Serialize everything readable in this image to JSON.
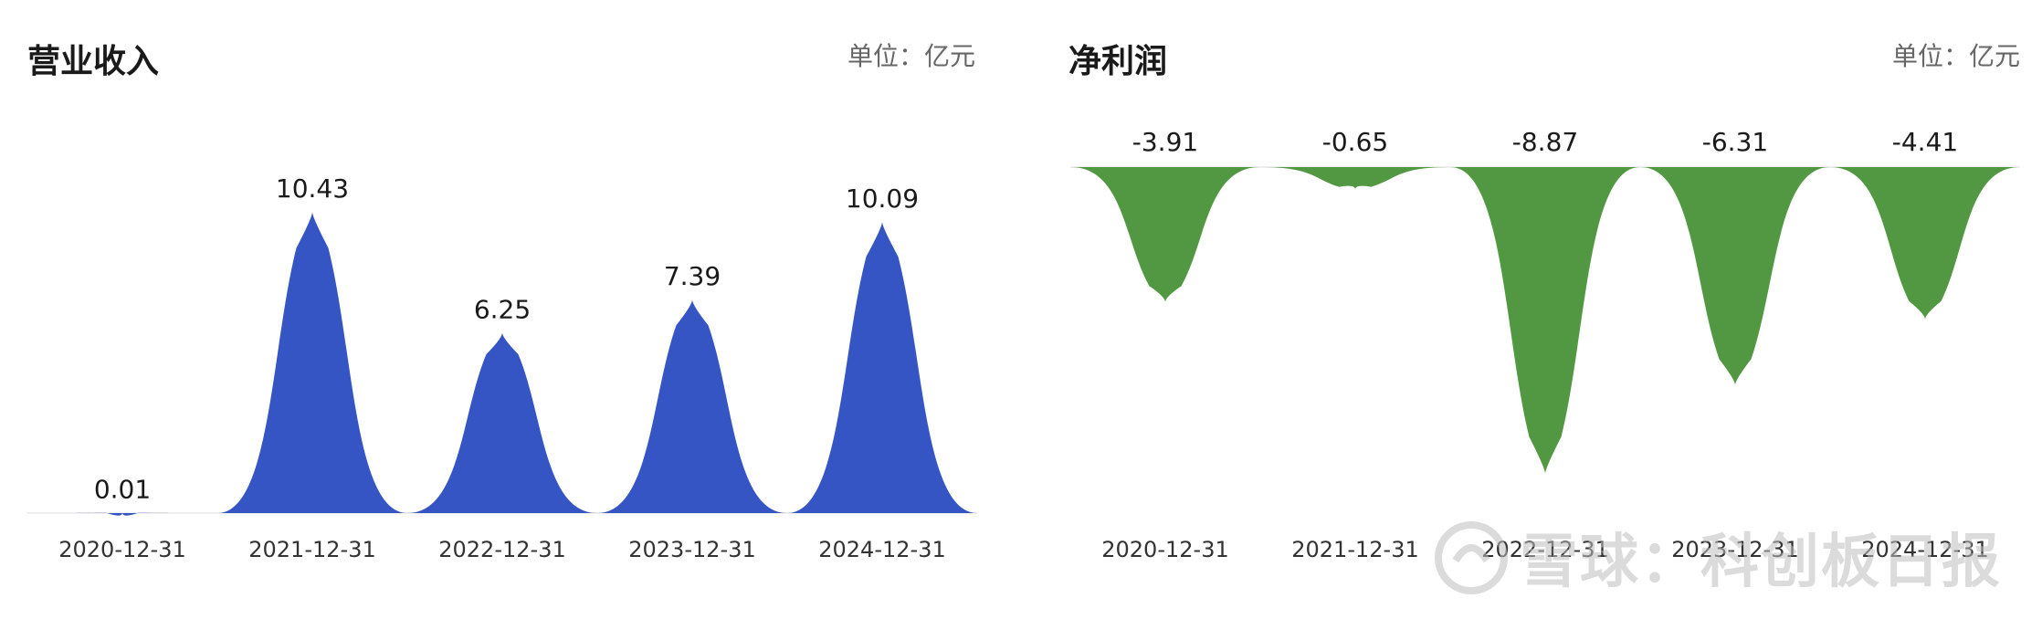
{
  "chart_data": [
    {
      "type": "area",
      "title": "营业收入",
      "unit": "单位：亿元",
      "categories": [
        "2020-12-31",
        "2021-12-31",
        "2022-12-31",
        "2023-12-31",
        "2024-12-31"
      ],
      "values": [
        0.01,
        10.43,
        6.25,
        7.39,
        10.09
      ],
      "value_labels": [
        "0.01",
        "10.43",
        "6.25",
        "7.39",
        "10.09"
      ],
      "ylim": [
        0,
        10.43
      ],
      "color": "#3655c4",
      "grid": false,
      "legend": "none"
    },
    {
      "type": "area",
      "title": "净利润",
      "unit": "单位：亿元",
      "categories": [
        "2020-12-31",
        "2021-12-31",
        "2022-12-31",
        "2023-12-31",
        "2024-12-31"
      ],
      "values": [
        -3.91,
        -0.65,
        -8.87,
        -6.31,
        -4.41
      ],
      "value_labels": [
        "-3.91",
        "-0.65",
        "-8.87",
        "-6.31",
        "-4.41"
      ],
      "ylim": [
        -8.87,
        0
      ],
      "color": "#529843",
      "grid": false,
      "legend": "none"
    }
  ],
  "watermark": {
    "text": "雪球：科创板日报",
    "logo": "snowball-logo-icon"
  }
}
